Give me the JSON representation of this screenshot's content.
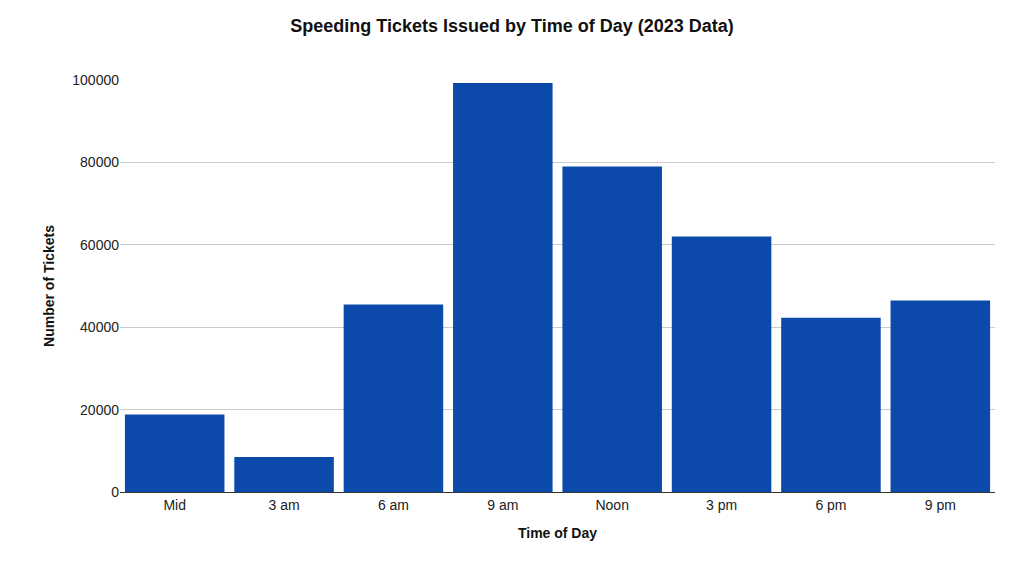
{
  "chart_data": {
    "type": "bar",
    "title": "Speeding Tickets Issued by Time of Day (2023 Data)",
    "x_label": "Time of Day",
    "y_label": "Number of Tickets",
    "categories": [
      "Mid",
      "3 am",
      "6 am",
      "9 am",
      "Noon",
      "3 pm",
      "6 pm",
      "9 pm"
    ],
    "values": [
      18800,
      8500,
      45500,
      99300,
      79000,
      62000,
      42300,
      46500
    ],
    "color": "#0b4aab",
    "ylim": [
      0,
      100000
    ],
    "yticks": [
      0,
      20000,
      40000,
      60000,
      80000,
      100000
    ],
    "grid": true
  }
}
